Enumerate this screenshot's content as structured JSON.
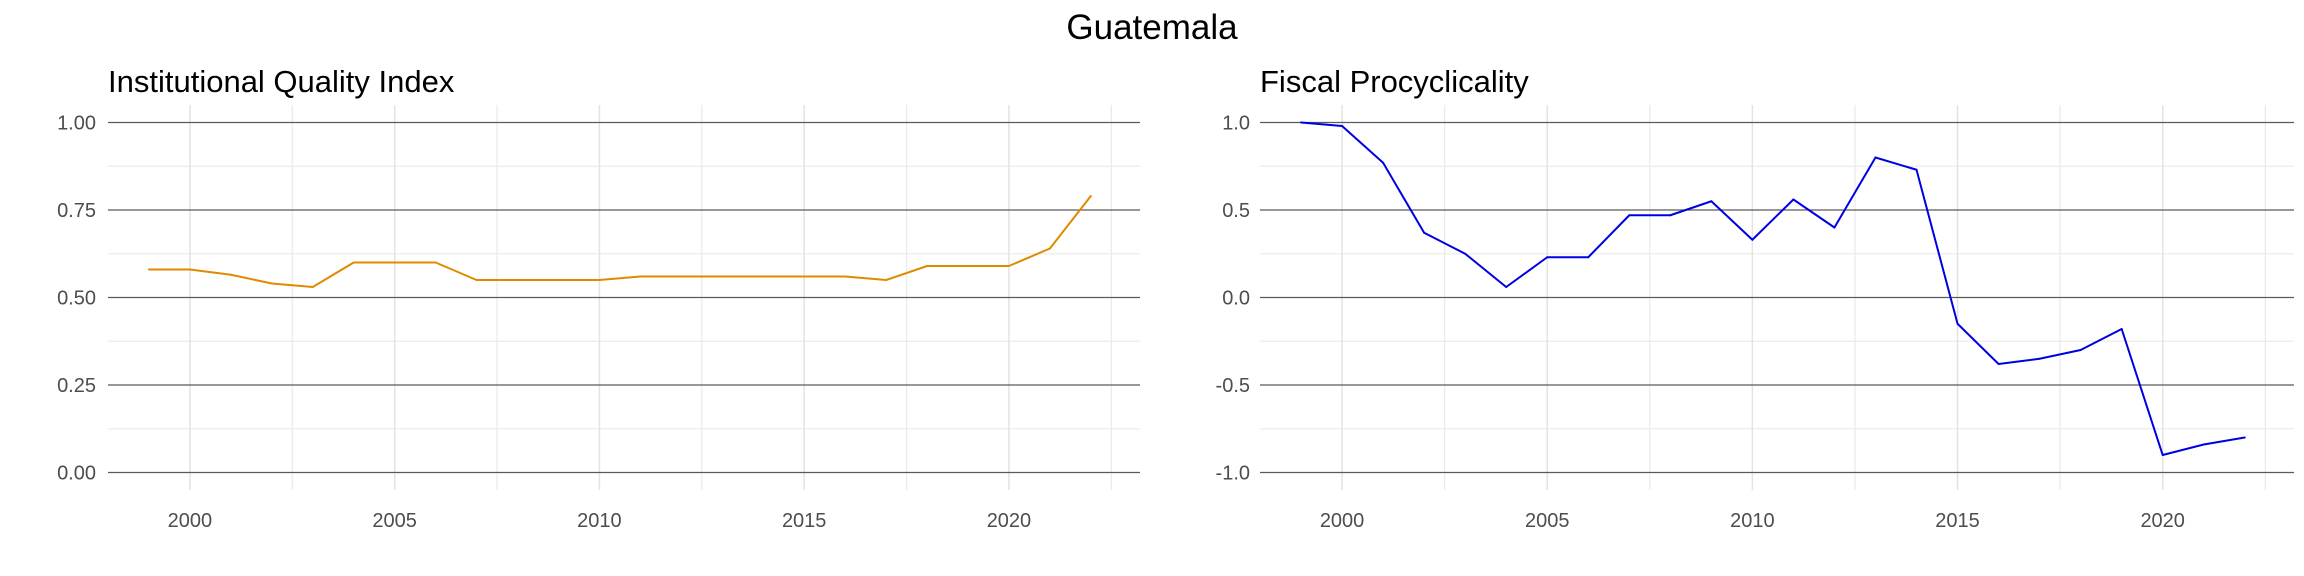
{
  "figure_title": "Guatemala",
  "chart_data": [
    {
      "type": "line",
      "title": "Institutional Quality Index",
      "xlabel": "",
      "ylabel": "",
      "xlim": [
        1998,
        2023.2
      ],
      "ylim": [
        -0.05,
        1.05
      ],
      "x_ticks": [
        2000,
        2005,
        2010,
        2015,
        2020
      ],
      "x_tick_labels": [
        "2000",
        "2005",
        "2010",
        "2015",
        "2020"
      ],
      "y_ticks": [
        0,
        0.25,
        0.5,
        0.75,
        1.0
      ],
      "y_tick_labels": [
        "0.00",
        "0.25",
        "0.50",
        "0.75",
        "1.00"
      ],
      "grid": true,
      "series": [
        {
          "color": "#E08A00",
          "x": [
            1999,
            2000,
            2001,
            2002,
            2003,
            2004,
            2005,
            2006,
            2007,
            2008,
            2009,
            2010,
            2011,
            2012,
            2013,
            2014,
            2015,
            2016,
            2017,
            2018,
            2019,
            2020,
            2021,
            2022
          ],
          "values": [
            0.58,
            0.58,
            0.565,
            0.54,
            0.53,
            0.6,
            0.6,
            0.6,
            0.55,
            0.55,
            0.55,
            0.55,
            0.56,
            0.56,
            0.56,
            0.56,
            0.56,
            0.56,
            0.55,
            0.59,
            0.59,
            0.59,
            0.64,
            0.79
          ]
        }
      ]
    },
    {
      "type": "line",
      "title": "Fiscal Procyclicality",
      "xlabel": "",
      "ylabel": "",
      "xlim": [
        1998,
        2023.2
      ],
      "ylim": [
        -1.1,
        1.1
      ],
      "x_ticks": [
        2000,
        2005,
        2010,
        2015,
        2020
      ],
      "x_tick_labels": [
        "2000",
        "2005",
        "2010",
        "2015",
        "2020"
      ],
      "y_ticks": [
        -1.0,
        -0.5,
        0.0,
        0.5,
        1.0
      ],
      "y_tick_labels": [
        "-1.0",
        "-0.5",
        "0.0",
        "0.5",
        "1.0"
      ],
      "grid": true,
      "series": [
        {
          "color": "#0000E0",
          "x": [
            1999,
            2000,
            2001,
            2002,
            2003,
            2004,
            2005,
            2006,
            2007,
            2008,
            2009,
            2010,
            2011,
            2012,
            2013,
            2014,
            2015,
            2016,
            2017,
            2018,
            2019,
            2020,
            2021,
            2022
          ],
          "values": [
            1.0,
            0.98,
            0.77,
            0.37,
            0.25,
            0.06,
            0.23,
            0.23,
            0.47,
            0.47,
            0.55,
            0.33,
            0.56,
            0.4,
            0.8,
            0.73,
            -0.15,
            -0.38,
            -0.35,
            -0.3,
            -0.18,
            -0.9,
            -0.84,
            -0.8
          ]
        }
      ]
    }
  ]
}
